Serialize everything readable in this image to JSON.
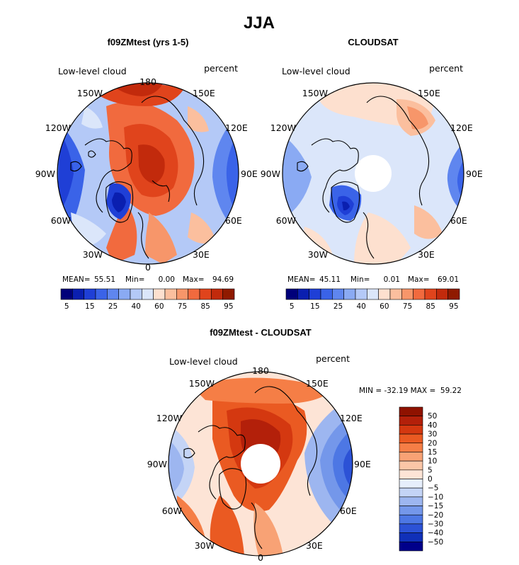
{
  "page": {
    "title": "JJA"
  },
  "chart_data": [
    {
      "type": "heatmap",
      "projection": "north-polar-stereographic",
      "title": "f09ZMtest (yrs 1-5)",
      "left_label": "Low-level cloud",
      "right_label": "percent",
      "longitude_labels": [
        "180",
        "150E",
        "120E",
        "90E",
        "60E",
        "30E",
        "0",
        "30W",
        "60W",
        "90W",
        "120W",
        "150W"
      ],
      "stats": {
        "mean_label": "MEAN=",
        "mean": "55.51",
        "min_label": "Min=",
        "min": "0.00",
        "max_label": "Max=",
        "max": "94.69"
      },
      "colorbar": {
        "orientation": "horizontal",
        "levels": [
          "5",
          "10",
          "15",
          "20",
          "25",
          "30",
          "40",
          "50",
          "60",
          "70",
          "75",
          "80",
          "85",
          "90",
          "95"
        ],
        "tick_labels": [
          "5",
          "15",
          "25",
          "40",
          "60",
          "75",
          "85",
          "95"
        ]
      },
      "polar_hole": false
    },
    {
      "type": "heatmap",
      "projection": "north-polar-stereographic",
      "title": "CLOUDSAT",
      "left_label": "Low-level cloud",
      "right_label": "percent",
      "longitude_labels": [
        "180",
        "150E",
        "120E",
        "90E",
        "60E",
        "30E",
        "0",
        "30W",
        "60W",
        "90W",
        "120W",
        "150W"
      ],
      "stats": {
        "mean_label": "MEAN=",
        "mean": "45.11",
        "min_label": "Min=",
        "min": "0.01",
        "max_label": "Max=",
        "max": "69.01"
      },
      "colorbar": {
        "orientation": "horizontal",
        "levels": [
          "5",
          "10",
          "15",
          "20",
          "25",
          "30",
          "40",
          "50",
          "60",
          "70",
          "75",
          "80",
          "85",
          "90",
          "95"
        ],
        "tick_labels": [
          "5",
          "15",
          "25",
          "40",
          "60",
          "75",
          "85",
          "95"
        ]
      },
      "polar_hole": true
    },
    {
      "type": "heatmap",
      "projection": "north-polar-stereographic",
      "title": "f09ZMtest - CLOUDSAT",
      "left_label": "Low-level cloud",
      "right_label": "percent",
      "longitude_labels": [
        "180",
        "150E",
        "120E",
        "90E",
        "60E",
        "30E",
        "0",
        "30W",
        "60W",
        "90W",
        "120W",
        "150W"
      ],
      "stats": {
        "text": "MIN = -32.19 MAX =  59.22"
      },
      "colorbar": {
        "orientation": "vertical",
        "tick_labels": [
          "50",
          "40",
          "30",
          "20",
          "15",
          "10",
          "5",
          "0",
          "−5",
          "−10",
          "−15",
          "−20",
          "−30",
          "−40",
          "−50"
        ]
      },
      "polar_hole": true
    }
  ],
  "colors": {
    "abs_scale": [
      "#00007a",
      "#0a1fb0",
      "#1f3fd6",
      "#3a63e8",
      "#5f86ef",
      "#8aaaf3",
      "#b4c9f7",
      "#dbe6fa",
      "#fde0cf",
      "#fbbf9e",
      "#f7966a",
      "#f16a3e",
      "#e0441c",
      "#c22a0c",
      "#8f1a00"
    ],
    "diff_scale": [
      "#8f1200",
      "#b3200a",
      "#d43810",
      "#ea5a22",
      "#f57e46",
      "#f8a275",
      "#fbc6a7",
      "#fde4d6",
      "#e6eefb",
      "#c4d4f6",
      "#9db6f0",
      "#7497ea",
      "#4d77e4",
      "#2c52d6",
      "#1030b8",
      "#00008a"
    ],
    "ocean_dark_blue": "#1f3fd6",
    "land_outline": "#000000"
  }
}
